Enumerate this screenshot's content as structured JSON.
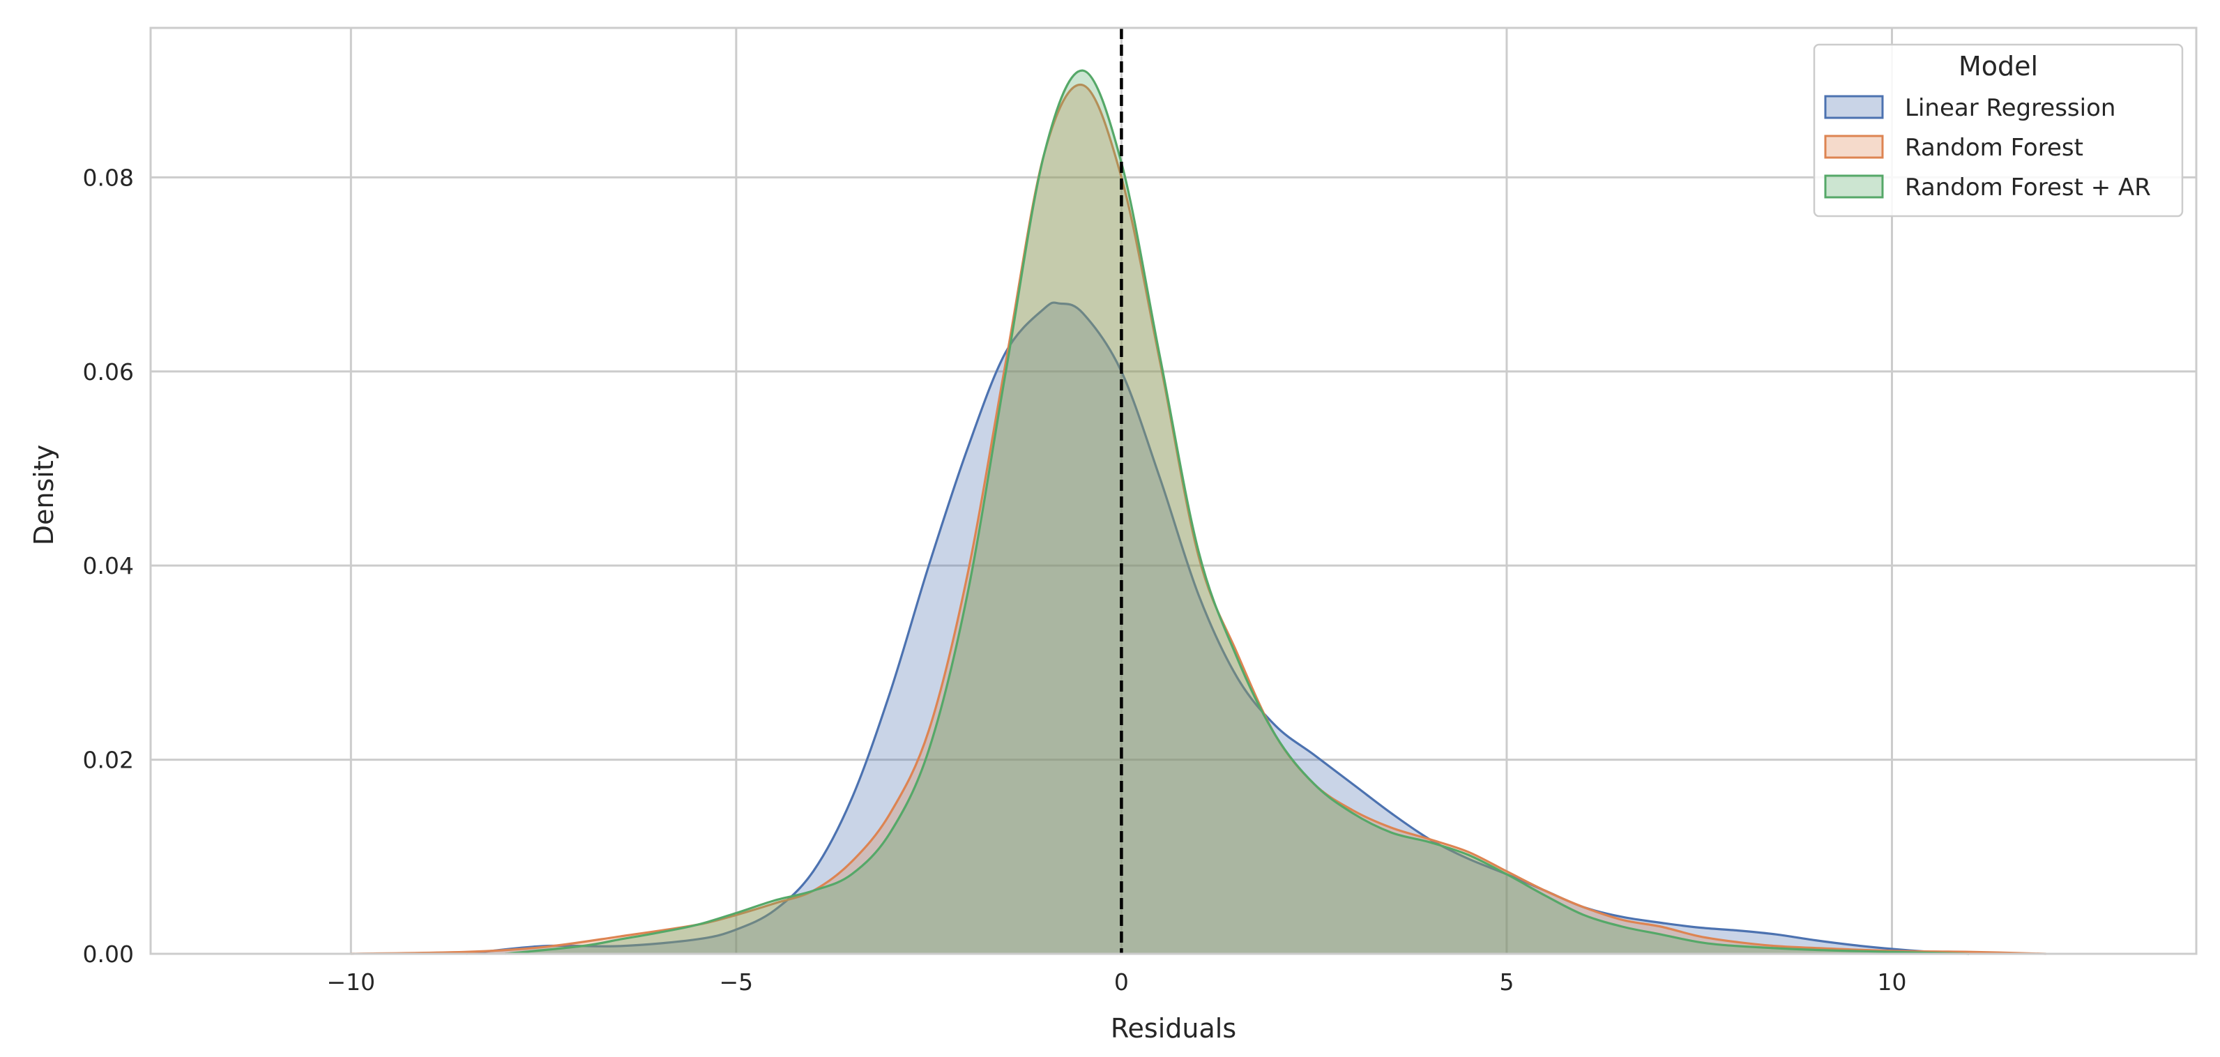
{
  "chart_data": {
    "type": "area",
    "title": "",
    "xlabel": "Residuals",
    "ylabel": "Density",
    "xlim": [
      -12.6,
      13.95
    ],
    "ylim": [
      0,
      0.0954
    ],
    "xticks": [
      -10,
      -5,
      0,
      5,
      10
    ],
    "xtick_labels": [
      "−10",
      "−5",
      "0",
      "5",
      "10"
    ],
    "yticks": [
      0.0,
      0.02,
      0.04,
      0.06,
      0.08
    ],
    "ytick_labels": [
      "0.00",
      "0.02",
      "0.04",
      "0.06",
      "0.08"
    ],
    "grid": true,
    "legend": {
      "title": "Model",
      "placement": "top-right"
    },
    "reference_line": {
      "x": 0,
      "style": "dashed",
      "color": "#000000"
    },
    "series": [
      {
        "name": "Linear Regression",
        "color": "#4C72B0",
        "x": [
          -8.5,
          -7.5,
          -6.5,
          -5.5,
          -5.0,
          -4.5,
          -4.0,
          -3.5,
          -3.0,
          -2.5,
          -2.0,
          -1.5,
          -1.0,
          -0.8,
          -0.5,
          0.0,
          0.5,
          1.0,
          1.5,
          2.0,
          2.5,
          3.0,
          3.5,
          4.0,
          4.5,
          5.0,
          5.5,
          6.0,
          6.5,
          7.0,
          7.5,
          8.0,
          8.5,
          9.0,
          9.5,
          10.0,
          10.5,
          11.0
        ],
        "y": [
          0.0,
          0.0008,
          0.0008,
          0.0015,
          0.0025,
          0.0045,
          0.0085,
          0.016,
          0.027,
          0.04,
          0.052,
          0.062,
          0.0665,
          0.067,
          0.066,
          0.06,
          0.049,
          0.037,
          0.0285,
          0.0235,
          0.0205,
          0.0175,
          0.0145,
          0.0118,
          0.0098,
          0.0082,
          0.0065,
          0.0048,
          0.0038,
          0.0032,
          0.0027,
          0.0024,
          0.002,
          0.0014,
          0.0009,
          0.0005,
          0.0002,
          0.0
        ]
      },
      {
        "name": "Random Forest",
        "color": "#DD8452",
        "x": [
          -10.0,
          -8.5,
          -7.5,
          -6.5,
          -5.5,
          -5.0,
          -4.5,
          -4.0,
          -3.5,
          -3.0,
          -2.5,
          -2.0,
          -1.5,
          -1.0,
          -0.5,
          0.0,
          0.5,
          1.0,
          1.5,
          2.0,
          2.5,
          3.0,
          3.5,
          4.0,
          4.5,
          5.0,
          5.5,
          6.0,
          6.5,
          7.0,
          7.5,
          8.0,
          8.5,
          9.0,
          10.0,
          11.0,
          12.0
        ],
        "y": [
          0.0,
          0.0002,
          0.0007,
          0.0018,
          0.003,
          0.004,
          0.0052,
          0.0065,
          0.0095,
          0.0145,
          0.023,
          0.039,
          0.061,
          0.0825,
          0.0895,
          0.08,
          0.061,
          0.041,
          0.031,
          0.0225,
          0.0175,
          0.0148,
          0.013,
          0.0118,
          0.0105,
          0.0085,
          0.0065,
          0.0048,
          0.0035,
          0.0028,
          0.0018,
          0.0012,
          0.0008,
          0.0006,
          0.0003,
          0.0002,
          0.0
        ]
      },
      {
        "name": "Random Forest + AR",
        "color": "#55A868",
        "x": [
          -8.0,
          -7.0,
          -6.5,
          -6.0,
          -5.5,
          -5.0,
          -4.5,
          -4.0,
          -3.5,
          -3.0,
          -2.5,
          -2.0,
          -1.5,
          -1.0,
          -0.5,
          0.0,
          0.5,
          1.0,
          1.5,
          2.0,
          2.5,
          3.0,
          3.5,
          4.0,
          4.5,
          5.0,
          5.5,
          6.0,
          6.5,
          7.0,
          7.5,
          8.0,
          9.0,
          10.0,
          11.0
        ],
        "y": [
          0.0,
          0.0008,
          0.0015,
          0.0022,
          0.003,
          0.0042,
          0.0055,
          0.0065,
          0.0082,
          0.0125,
          0.021,
          0.037,
          0.06,
          0.0825,
          0.091,
          0.0815,
          0.0615,
          0.0415,
          0.0305,
          0.0225,
          0.0175,
          0.0145,
          0.0125,
          0.0115,
          0.0102,
          0.0082,
          0.006,
          0.004,
          0.0028,
          0.002,
          0.0012,
          0.0008,
          0.0004,
          0.0002,
          0.0
        ]
      }
    ]
  }
}
